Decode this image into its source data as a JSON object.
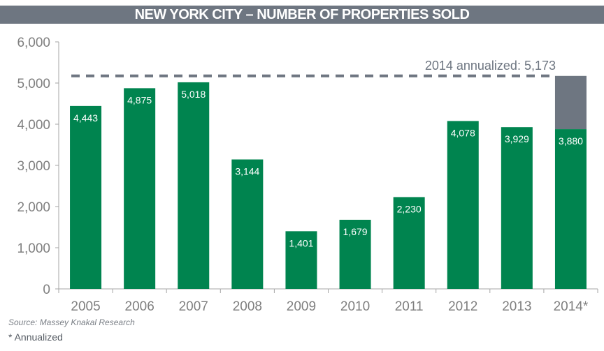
{
  "chart_data": {
    "type": "bar",
    "title": "NEW YORK CITY – NUMBER OF PROPERTIES SOLD",
    "categories": [
      "2005",
      "2006",
      "2007",
      "2008",
      "2009",
      "2010",
      "2011",
      "2012",
      "2013",
      "2014*"
    ],
    "values": [
      4443,
      4875,
      5018,
      3144,
      1401,
      1679,
      2230,
      4078,
      3929,
      3880
    ],
    "value_labels": [
      "4,443",
      "4,875",
      "5,018",
      "3,144",
      "1,401",
      "1,679",
      "2,230",
      "4,078",
      "3,929",
      "3,880"
    ],
    "annualized": {
      "category": "2014*",
      "value": 5173,
      "label": "2014 annualized:  5,173"
    },
    "yticks": [
      0,
      1000,
      2000,
      3000,
      4000,
      5000,
      6000
    ],
    "ytick_labels": [
      "0",
      "1,000",
      "2,000",
      "3,000",
      "4,000",
      "5,000",
      "6,000"
    ],
    "ylim": [
      0,
      6000
    ],
    "xlabel": "",
    "ylabel": "",
    "grid": false,
    "colors": {
      "bar": "#00844f",
      "annualized": "#6e7681",
      "axis": "#a6a6a6",
      "tick_text": "#7f7f7f"
    }
  },
  "footer": {
    "source": "Source: Massey Knakal Research",
    "note": "* Annualized"
  }
}
